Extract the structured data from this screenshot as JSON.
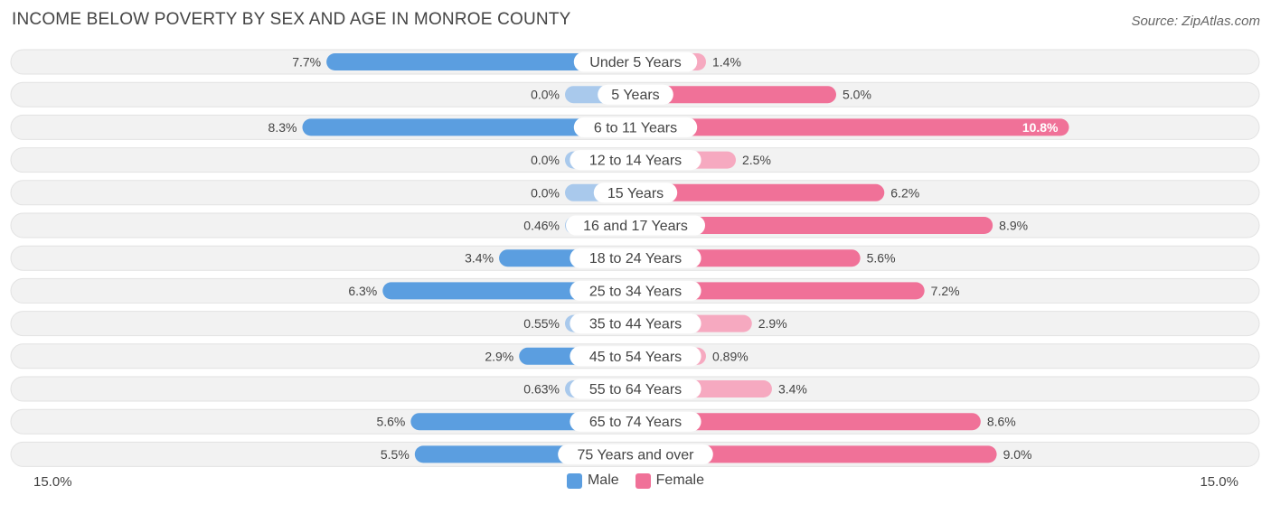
{
  "title": "INCOME BELOW POVERTY BY SEX AND AGE IN MONROE COUNTY",
  "source": "Source: ZipAtlas.com",
  "colors": {
    "male_strong": "#5b9ee0",
    "male_light": "#a9c9ec",
    "female_strong": "#f07198",
    "female_light": "#f6a9c0",
    "row_bg": "#f2f2f2",
    "row_border": "#e2e2e2"
  },
  "chart_data": {
    "type": "bar",
    "orientation": "horizontal-diverging",
    "title": "INCOME BELOW POVERTY BY SEX AND AGE IN MONROE COUNTY",
    "categories": [
      "Under 5 Years",
      "5 Years",
      "6 to 11 Years",
      "12 to 14 Years",
      "15 Years",
      "16 and 17 Years",
      "18 to 24 Years",
      "25 to 34 Years",
      "35 to 44 Years",
      "45 to 54 Years",
      "55 to 64 Years",
      "65 to 74 Years",
      "75 Years and over"
    ],
    "series": [
      {
        "name": "Male",
        "values": [
          7.7,
          0.0,
          8.3,
          0.0,
          0.0,
          0.46,
          3.4,
          6.3,
          0.55,
          2.9,
          0.63,
          5.6,
          5.5
        ],
        "labels": [
          "7.7%",
          "0.0%",
          "8.3%",
          "0.0%",
          "0.0%",
          "0.46%",
          "3.4%",
          "6.3%",
          "0.55%",
          "2.9%",
          "0.63%",
          "5.6%",
          "5.5%"
        ]
      },
      {
        "name": "Female",
        "values": [
          1.4,
          5.0,
          10.8,
          2.5,
          6.2,
          8.9,
          5.6,
          7.2,
          2.9,
          0.89,
          3.4,
          8.6,
          9.0
        ],
        "labels": [
          "1.4%",
          "5.0%",
          "10.8%",
          "2.5%",
          "6.2%",
          "8.9%",
          "5.6%",
          "7.2%",
          "2.9%",
          "0.89%",
          "3.4%",
          "8.6%",
          "9.0%"
        ]
      }
    ],
    "xlim": [
      -15.0,
      15.0
    ],
    "axis_min_label": "15.0%",
    "axis_max_label": "15.0%",
    "legend": [
      "Male",
      "Female"
    ],
    "legend_position": "bottom-center"
  }
}
